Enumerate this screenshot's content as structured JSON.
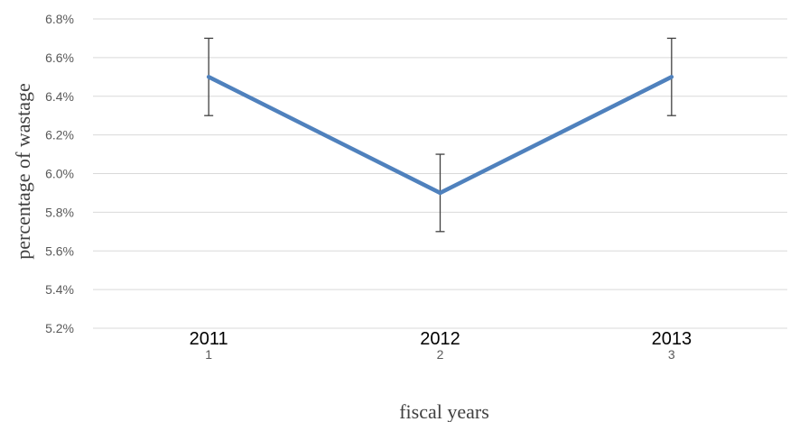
{
  "chart_data": {
    "type": "line",
    "x": [
      1,
      2,
      3
    ],
    "x_index_labels": [
      "1",
      "2",
      "3"
    ],
    "categories": [
      "2011",
      "2012",
      "2013"
    ],
    "series": [
      {
        "values": [
          0.065,
          0.059,
          0.065
        ],
        "error": [
          0.002,
          0.002,
          0.002
        ],
        "color": "#4f81bd"
      }
    ],
    "ylim": [
      0.052,
      0.068
    ],
    "yticks": [
      0.052,
      0.054,
      0.056,
      0.058,
      0.06,
      0.062,
      0.064,
      0.066,
      0.068
    ],
    "ytick_labels": [
      "5.2%",
      "5.4%",
      "5.6%",
      "5.8%",
      "6.0%",
      "6.2%",
      "6.4%",
      "6.6%",
      "6.8%"
    ],
    "xlabel": "fiscal years",
    "ylabel": "percentage  of wastage",
    "grid": true,
    "legend": "none"
  }
}
